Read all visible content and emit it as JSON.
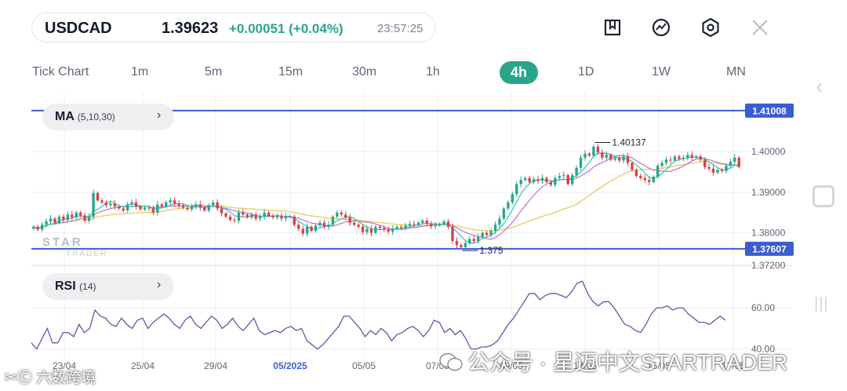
{
  "header": {
    "symbol": "USDCAD",
    "price": "1.39623",
    "change": "+0.00051 (+0.04%)",
    "time": "23:57:25"
  },
  "toolbar": {
    "icons": [
      "bookmark-icon",
      "indicator-icon",
      "settings-icon",
      "close-icon"
    ]
  },
  "tabs": [
    {
      "label": "Tick Chart",
      "active": false
    },
    {
      "label": "1m",
      "active": false
    },
    {
      "label": "5m",
      "active": false
    },
    {
      "label": "15m",
      "active": false
    },
    {
      "label": "30m",
      "active": false
    },
    {
      "label": "1h",
      "active": false
    },
    {
      "label": "4h",
      "active": true
    },
    {
      "label": "1D",
      "active": false
    },
    {
      "label": "1W",
      "active": false
    },
    {
      "label": "MN",
      "active": false
    }
  ],
  "indicators": {
    "ma": {
      "name": "MA",
      "params": "(5,10,30)"
    },
    "rsi": {
      "name": "RSI",
      "params": "(14)"
    }
  },
  "watermark": {
    "brand": "STAR",
    "sub": "TRADER",
    "left": "✂Ⓒ 六数跨境",
    "right": "公众号 · 星迈中文STARTRADER"
  },
  "colors": {
    "accent": "#2aa58b",
    "up": "#2aa58b",
    "down": "#d9414a",
    "hline": "#3a5ed1",
    "ma5": "#2ec7b6",
    "ma10": "#c070cf",
    "ma30": "#e8cf6a",
    "rsi": "#6b52a8"
  },
  "chart_data": [
    {
      "type": "candlestick",
      "ylim": [
        1.372,
        1.4145
      ],
      "y_ticks": [
        "1.40000",
        "1.39000",
        "1.38000",
        "1.37200"
      ],
      "y_tick_values": [
        1.4,
        1.39,
        1.38,
        1.372
      ],
      "x_ticks": [
        "23/04",
        "25/04",
        "29/04",
        "05/2025",
        "05/05",
        "07/05",
        "09/05",
        "13/05",
        "15/05",
        "17/05"
      ],
      "horizontal_lines": [
        {
          "label": "1.41008",
          "value": 1.41008
        },
        {
          "label": "1.37607",
          "value": 1.37607
        }
      ],
      "annotations": [
        {
          "label": "1.40137",
          "value": 1.40137,
          "position": "high"
        },
        {
          "label": "1.375",
          "value": 1.375,
          "position": "low"
        }
      ],
      "series": [
        {
          "name": "MA5"
        },
        {
          "name": "MA10"
        },
        {
          "name": "MA30"
        }
      ],
      "close": [
        1.3815,
        1.3808,
        1.382,
        1.3828,
        1.3835,
        1.3825,
        1.384,
        1.3832,
        1.3845,
        1.3838,
        1.385,
        1.3843,
        1.383,
        1.384,
        1.3898,
        1.388,
        1.3875,
        1.3868,
        1.3872,
        1.3865,
        1.386,
        1.3855,
        1.387,
        1.3875,
        1.3865,
        1.3858,
        1.3862,
        1.386,
        1.385,
        1.387,
        1.3865,
        1.3875,
        1.388,
        1.3872,
        1.3868,
        1.3862,
        1.3858,
        1.3865,
        1.387,
        1.3862,
        1.3855,
        1.3868,
        1.3875,
        1.386,
        1.3848,
        1.384,
        1.3832,
        1.383,
        1.385,
        1.3845,
        1.3838,
        1.3845,
        1.3835,
        1.384,
        1.385,
        1.3842,
        1.3838,
        1.3842,
        1.3835,
        1.384,
        1.384,
        1.382,
        1.381,
        1.3798,
        1.3815,
        1.3805,
        1.3818,
        1.3825,
        1.3815,
        1.382,
        1.384,
        1.385,
        1.3845,
        1.3838,
        1.3825,
        1.382,
        1.3815,
        1.3802,
        1.381,
        1.38,
        1.3815,
        1.3812,
        1.3808,
        1.3803,
        1.381,
        1.3815,
        1.3812,
        1.3818,
        1.3822,
        1.382,
        1.3825,
        1.383,
        1.3822,
        1.3816,
        1.3818,
        1.3822,
        1.3828,
        1.3815,
        1.378,
        1.377,
        1.3765,
        1.3775,
        1.3785,
        1.378,
        1.379,
        1.38,
        1.3795,
        1.3805,
        1.382,
        1.3835,
        1.386,
        1.3875,
        1.3895,
        1.392,
        1.393,
        1.3935,
        1.3925,
        1.3932,
        1.3928,
        1.3935,
        1.3925,
        1.3918,
        1.3935,
        1.394,
        1.3942,
        1.392,
        1.3942,
        1.396,
        1.3985,
        1.3995,
        1.399,
        1.4012,
        1.3998,
        1.3985,
        1.3992,
        1.398,
        1.3985,
        1.3978,
        1.3988,
        1.3972,
        1.3955,
        1.394,
        1.3935,
        1.393,
        1.3925,
        1.3938,
        1.3965,
        1.3972,
        1.398,
        1.3978,
        1.3988,
        1.3982,
        1.3985,
        1.3992,
        1.3985,
        1.3988,
        1.398,
        1.3962,
        1.3958,
        1.3948,
        1.3955,
        1.3952,
        1.3965,
        1.3975,
        1.3985,
        1.3962
      ]
    },
    {
      "type": "line",
      "series": [
        {
          "name": "RSI"
        }
      ],
      "ylim": [
        36,
        78
      ],
      "y_ticks": [
        "60.00",
        "40.00"
      ],
      "y_tick_values": [
        60,
        40
      ],
      "values": [
        43,
        40,
        45,
        50,
        43,
        43,
        48,
        48,
        46,
        52,
        48,
        50,
        59,
        56,
        55,
        52,
        51,
        55,
        52,
        50,
        54,
        55,
        50,
        53,
        55,
        57,
        55,
        52,
        50,
        54,
        56,
        52,
        50,
        53,
        56,
        54,
        50,
        52,
        55,
        51,
        49,
        52,
        55,
        49,
        47,
        48,
        49,
        48,
        50,
        51,
        49,
        50,
        44,
        42,
        40,
        42,
        45,
        48,
        51,
        56,
        56,
        53,
        50,
        46,
        49,
        47,
        50,
        48,
        44,
        47,
        48,
        50,
        51,
        49,
        46,
        49,
        54,
        53,
        48,
        50,
        47,
        49,
        45,
        40,
        40,
        41,
        41,
        42,
        44,
        48,
        52,
        55,
        59,
        63,
        67,
        67,
        64,
        66,
        67,
        67,
        66,
        65,
        68,
        72,
        73,
        67,
        63,
        61,
        63,
        63,
        60,
        56,
        52,
        51,
        49,
        48,
        52,
        57,
        60,
        60,
        61,
        59,
        60,
        60,
        57,
        55,
        53,
        53,
        52,
        54,
        56,
        54
      ]
    }
  ]
}
